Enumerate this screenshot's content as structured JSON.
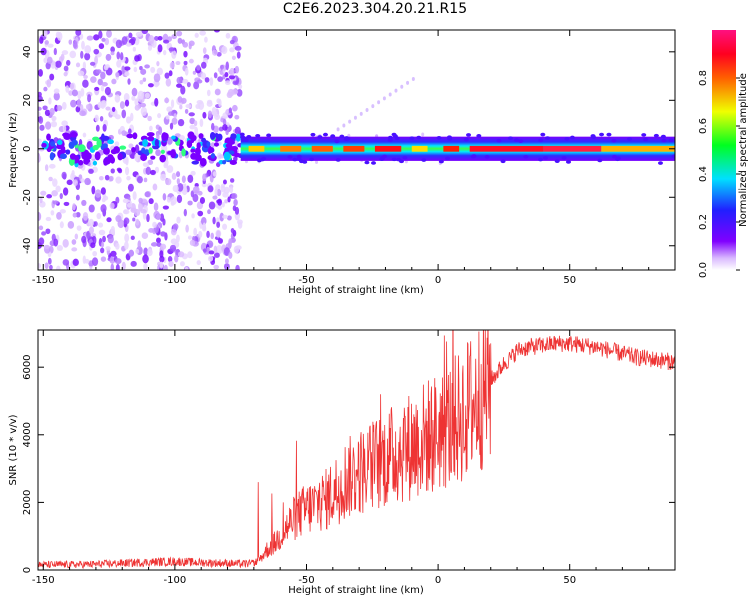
{
  "figure": {
    "title": "C2E6.2023.304.20.21.R15"
  },
  "chart_data": [
    {
      "type": "heatmap",
      "title": "",
      "xlabel": "Height of straight line (km)",
      "ylabel": "Frequency (Hz)",
      "xlim": [
        -152,
        90
      ],
      "ylim": [
        -50,
        49
      ],
      "xticks": [
        -150,
        -100,
        -50,
        0,
        50
      ],
      "yticks": [
        -40,
        -20,
        0,
        20,
        40
      ],
      "colorbar": {
        "label": "Normalized spectral amplitude",
        "range": [
          0.0,
          1.0
        ],
        "ticks": [
          "0.0",
          "0.2",
          "0.4",
          "0.6",
          "0.8"
        ],
        "colormap": "rainbow (white → violet → blue → cyan → green → yellow → red → magenta)"
      },
      "ridge": {
        "description": "narrow high-amplitude band centred on 0 Hz",
        "x_range": [
          -75,
          90
        ],
        "center_frequency": 0,
        "peak_amplitude_by_height": [
          {
            "x": -75,
            "amp": 0.45
          },
          {
            "x": -60,
            "amp": 0.6
          },
          {
            "x": -40,
            "amp": 0.65
          },
          {
            "x": -20,
            "amp": 0.8
          },
          {
            "x": 0,
            "amp": 0.75
          },
          {
            "x": 25,
            "amp": 0.95
          },
          {
            "x": 50,
            "amp": 0.9
          },
          {
            "x": 90,
            "amp": 0.7
          }
        ],
        "diffuse_scatter_x_range": [
          -152,
          -75
        ]
      }
    },
    {
      "type": "line",
      "title": "",
      "xlabel": "Height of straight line (km)",
      "ylabel": "SNR (10 * v/v)",
      "xlim": [
        -152,
        90
      ],
      "ylim": [
        0,
        7100
      ],
      "xticks": [
        -150,
        -100,
        -50,
        0,
        50
      ],
      "yticks": [
        0,
        2000,
        4000,
        6000
      ],
      "color": "#ee3333",
      "series": [
        {
          "x": [
            -152,
            -140,
            -130,
            -120,
            -110,
            -100,
            -90,
            -80,
            -75,
            -70,
            -68,
            -65,
            -62,
            -60,
            -57,
            -55,
            -52,
            -50,
            -47,
            -45,
            -42,
            -40,
            -37,
            -35,
            -32,
            -30,
            -27,
            -25,
            -22,
            -20,
            -17,
            -15,
            -12,
            -10,
            -7,
            -5,
            -2,
            0,
            3,
            5,
            8,
            10,
            13,
            15,
            18,
            20,
            23,
            25,
            28,
            30,
            35,
            40,
            45,
            50,
            55,
            60,
            65,
            70,
            75,
            80,
            85,
            90
          ],
          "y": [
            150,
            160,
            170,
            200,
            230,
            250,
            220,
            200,
            180,
            200,
            300,
            600,
            800,
            1000,
            1300,
            1500,
            1700,
            1800,
            1900,
            2000,
            2100,
            2300,
            2500,
            2700,
            2800,
            2900,
            3000,
            3100,
            3200,
            3300,
            3400,
            3500,
            3600,
            3700,
            3800,
            3900,
            4000,
            4100,
            4200,
            4300,
            4500,
            4700,
            4900,
            5100,
            5400,
            5600,
            5900,
            6100,
            6300,
            6500,
            6600,
            6650,
            6700,
            6700,
            6650,
            6600,
            6500,
            6400,
            6300,
            6250,
            6200,
            6150
          ]
        }
      ]
    }
  ]
}
